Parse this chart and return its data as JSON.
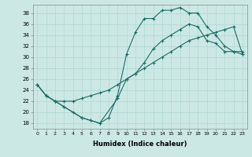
{
  "xlabel": "Humidex (Indice chaleur)",
  "ylabel": "",
  "bg_color": "#cce8e5",
  "line_color": "#1a6e65",
  "grid_color": "#b0d8d4",
  "xlim": [
    -0.5,
    23.5
  ],
  "ylim": [
    17,
    39.5
  ],
  "yticks": [
    18,
    20,
    22,
    24,
    26,
    28,
    30,
    32,
    34,
    36,
    38
  ],
  "xticks": [
    0,
    1,
    2,
    3,
    4,
    5,
    6,
    7,
    8,
    9,
    10,
    11,
    12,
    13,
    14,
    15,
    16,
    17,
    18,
    19,
    20,
    21,
    22,
    23
  ],
  "line1_x": [
    0,
    1,
    2,
    3,
    4,
    5,
    6,
    7,
    8,
    9,
    10,
    11,
    12,
    13,
    14,
    15,
    16,
    17,
    18,
    19,
    20,
    21,
    22,
    23
  ],
  "line1_y": [
    25,
    23,
    22,
    21,
    20,
    19,
    18.5,
    18,
    19,
    23,
    30.5,
    34.5,
    37,
    37,
    38.5,
    38.5,
    39,
    38,
    38,
    35.5,
    34,
    32,
    31,
    31
  ],
  "line2_x": [
    0,
    1,
    2,
    3,
    5,
    6,
    7,
    9,
    10,
    11,
    12,
    13,
    14,
    15,
    16,
    17,
    18,
    19,
    20,
    21,
    22,
    23
  ],
  "line2_y": [
    25,
    23,
    22,
    21,
    19,
    18.5,
    18,
    22.5,
    26,
    27,
    29,
    31.5,
    33,
    34,
    35,
    36,
    35.5,
    33,
    32.5,
    31,
    31,
    30.5
  ],
  "line3_x": [
    0,
    1,
    2,
    3,
    4,
    5,
    6,
    7,
    8,
    9,
    10,
    11,
    12,
    13,
    14,
    15,
    16,
    17,
    18,
    19,
    20,
    21,
    22,
    23
  ],
  "line3_y": [
    25,
    23,
    22,
    22,
    22,
    22.5,
    23,
    23.5,
    24,
    25,
    26,
    27,
    28,
    29,
    30,
    31,
    32,
    33,
    33.5,
    34,
    34.5,
    35,
    35.5,
    30.5
  ]
}
